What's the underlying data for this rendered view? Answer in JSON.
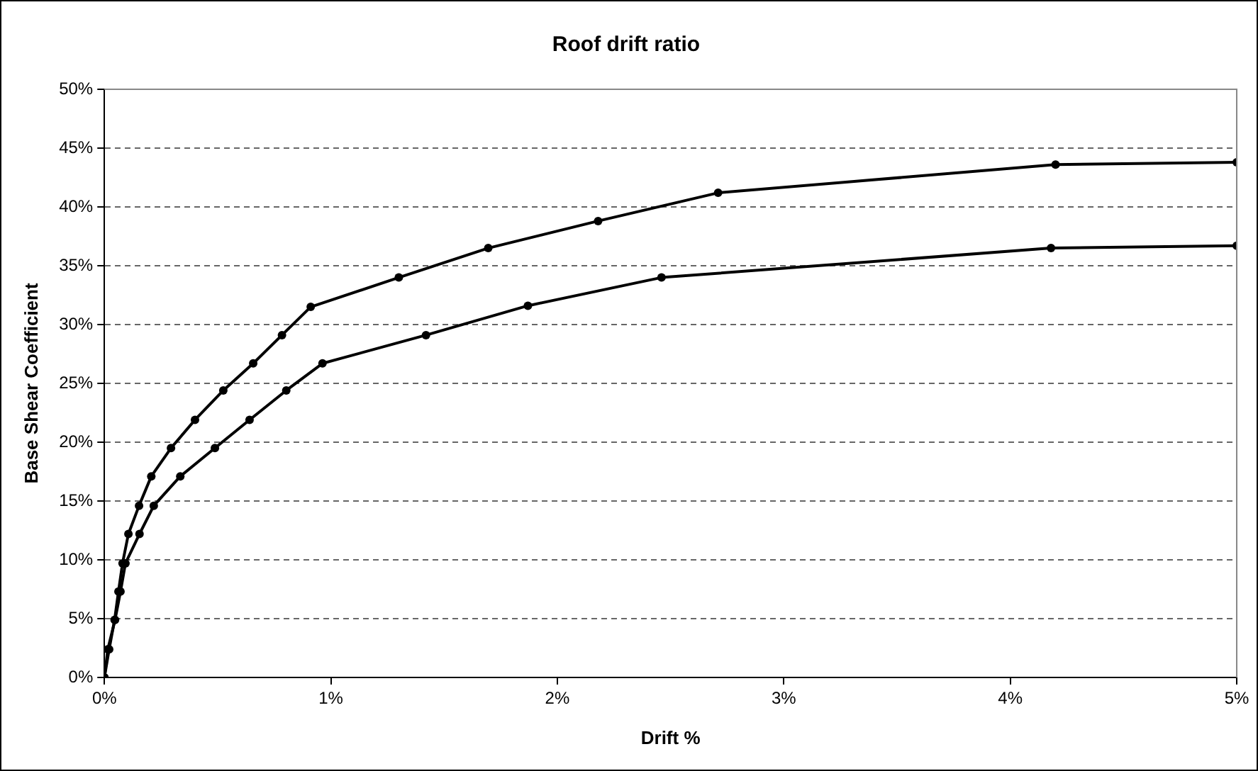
{
  "chart_data": {
    "type": "line",
    "title": "Roof drift ratio",
    "xlabel": "Drift %",
    "ylabel": "Base Shear Coefficient",
    "xlim": [
      0,
      5
    ],
    "xticks": [
      {
        "value": 0,
        "label": "0%"
      },
      {
        "value": 1,
        "label": "1%"
      },
      {
        "value": 2,
        "label": "2%"
      },
      {
        "value": 3,
        "label": "3%"
      },
      {
        "value": 4,
        "label": "4%"
      },
      {
        "value": 5,
        "label": "5%"
      }
    ],
    "ylim": [
      0,
      50
    ],
    "yticks": [
      {
        "value": 0,
        "label": "0%"
      },
      {
        "value": 5,
        "label": "5%"
      },
      {
        "value": 10,
        "label": "10%"
      },
      {
        "value": 15,
        "label": "15%"
      },
      {
        "value": 20,
        "label": "20%"
      },
      {
        "value": 25,
        "label": "25%"
      },
      {
        "value": 30,
        "label": "30%"
      },
      {
        "value": 35,
        "label": "35%"
      },
      {
        "value": 40,
        "label": "40%"
      },
      {
        "value": 45,
        "label": "45%"
      },
      {
        "value": 50,
        "label": "50%"
      }
    ],
    "grid": "y",
    "legend": false,
    "marker": "circle",
    "line_style": "solid",
    "series": [
      {
        "color": "#000000",
        "x": [
          0,
          0.021,
          0.045,
          0.062,
          0.08,
          0.106,
          0.153,
          0.207,
          0.294,
          0.4,
          0.525,
          0.657,
          0.784,
          0.911,
          1.3,
          1.695,
          2.18,
          2.71,
          4.2,
          5.0
        ],
        "values": [
          0,
          2.4,
          4.9,
          7.3,
          9.7,
          12.2,
          14.6,
          17.1,
          19.5,
          21.9,
          24.4,
          26.7,
          29.1,
          31.5,
          34.0,
          36.5,
          38.8,
          41.2,
          43.6,
          43.8
        ]
      },
      {
        "color": "#000000",
        "x": [
          0,
          0.015,
          0.047,
          0.071,
          0.093,
          0.155,
          0.218,
          0.335,
          0.488,
          0.641,
          0.803,
          0.963,
          1.42,
          1.87,
          2.46,
          4.18,
          5.0
        ],
        "values": [
          0,
          2.4,
          4.9,
          7.3,
          9.7,
          12.2,
          14.6,
          17.1,
          19.5,
          21.9,
          24.4,
          26.7,
          29.1,
          31.6,
          34.0,
          36.5,
          36.7
        ]
      }
    ]
  }
}
